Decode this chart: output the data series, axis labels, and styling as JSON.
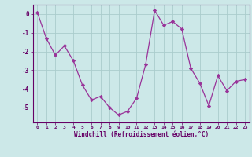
{
  "x": [
    0,
    1,
    2,
    3,
    4,
    5,
    6,
    7,
    8,
    9,
    10,
    11,
    12,
    13,
    14,
    15,
    16,
    17,
    18,
    19,
    20,
    21,
    22,
    23
  ],
  "y": [
    0.1,
    -1.3,
    -2.2,
    -1.7,
    -2.5,
    -3.8,
    -4.6,
    -4.4,
    -5.0,
    -5.4,
    -5.2,
    -4.5,
    -2.7,
    0.2,
    -0.6,
    -0.4,
    -0.8,
    -2.9,
    -3.7,
    -4.9,
    -3.3,
    -4.1,
    -3.6,
    -3.5
  ],
  "line_color": "#993399",
  "marker": "D",
  "marker_size": 2.2,
  "bg_color": "#cce8e8",
  "grid_color": "#aacccc",
  "xlabel": "Windchill (Refroidissement éolien,°C)",
  "ylim": [
    -5.8,
    0.5
  ],
  "xlim": [
    -0.5,
    23.5
  ],
  "yticks": [
    0,
    -1,
    -2,
    -3,
    -4,
    -5
  ],
  "xticks": [
    0,
    1,
    2,
    3,
    4,
    5,
    6,
    7,
    8,
    9,
    10,
    11,
    12,
    13,
    14,
    15,
    16,
    17,
    18,
    19,
    20,
    21,
    22,
    23
  ],
  "tick_label_color": "#660066",
  "xlabel_color": "#660066",
  "spine_color": "#660066"
}
